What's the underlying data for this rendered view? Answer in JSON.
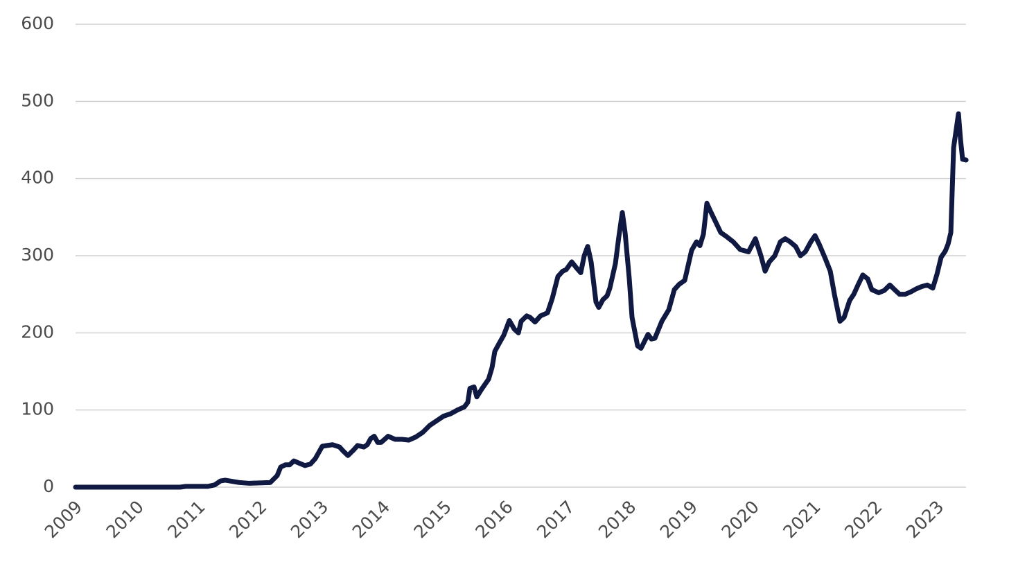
{
  "chart_data": {
    "type": "line",
    "x": [
      2009.0,
      2010.7,
      2010.79,
      2011.151,
      2011.264,
      2011.354,
      2011.432,
      2011.658,
      2011.827,
      2012.164,
      2012.277,
      2012.333,
      2012.412,
      2012.48,
      2012.547,
      2012.637,
      2012.727,
      2012.818,
      2012.896,
      2013.009,
      2013.088,
      2013.178,
      2013.291,
      2013.347,
      2013.426,
      2013.516,
      2013.583,
      2013.685,
      2013.741,
      2013.797,
      2013.854,
      2013.91,
      2013.966,
      2014.079,
      2014.135,
      2014.191,
      2014.304,
      2014.417,
      2014.529,
      2014.642,
      2014.755,
      2014.867,
      2014.98,
      2015.092,
      2015.205,
      2015.318,
      2015.374,
      2015.408,
      2015.475,
      2015.52,
      2015.599,
      2015.712,
      2015.768,
      2015.813,
      2015.881,
      2015.959,
      2016.049,
      2016.128,
      2016.196,
      2016.241,
      2016.331,
      2016.387,
      2016.466,
      2016.556,
      2016.669,
      2016.748,
      2016.838,
      2016.917,
      2016.973,
      2017.063,
      2017.142,
      2017.209,
      2017.266,
      2017.322,
      2017.378,
      2017.457,
      2017.502,
      2017.57,
      2017.637,
      2017.682,
      2017.773,
      2017.829,
      2017.885,
      2017.93,
      2017.998,
      2018.043,
      2018.133,
      2018.189,
      2018.302,
      2018.358,
      2018.414,
      2018.527,
      2018.64,
      2018.73,
      2018.809,
      2018.899,
      2019.011,
      2019.09,
      2019.146,
      2019.203,
      2019.259,
      2019.315,
      2019.394,
      2019.484,
      2019.574,
      2019.687,
      2019.8,
      2019.935,
      2020.047,
      2020.137,
      2020.205,
      2020.273,
      2020.363,
      2020.453,
      2020.532,
      2020.611,
      2020.701,
      2020.779,
      2020.858,
      2020.948,
      2021.016,
      2021.083,
      2021.174,
      2021.264,
      2021.331,
      2021.421,
      2021.489,
      2021.579,
      2021.646,
      2021.714,
      2021.793,
      2021.872,
      2021.939,
      2022.052,
      2022.142,
      2022.232,
      2022.322,
      2022.39,
      2022.48,
      2022.57,
      2022.66,
      2022.75,
      2022.84,
      2022.93,
      2022.998,
      2023.065,
      2023.133,
      2023.178,
      2023.223,
      2023.268,
      2023.347,
      2023.381,
      2023.414,
      2023.471
    ],
    "series": [
      {
        "color": "#0f1941",
        "values": [
          0,
          0,
          1,
          1,
          3,
          8,
          9,
          6,
          5,
          6,
          15,
          26,
          29,
          29,
          34,
          31,
          28,
          30,
          37,
          53,
          54,
          55,
          52,
          47,
          41,
          48,
          54,
          52,
          55,
          63,
          66,
          58,
          58,
          66,
          64,
          62,
          62,
          61,
          65,
          71,
          80,
          86,
          92,
          95,
          100,
          104,
          110,
          128,
          130,
          117,
          127,
          140,
          155,
          176,
          186,
          197,
          216,
          205,
          200,
          215,
          222,
          220,
          214,
          222,
          226,
          245,
          273,
          280,
          282,
          292,
          284,
          278,
          300,
          312,
          292,
          240,
          233,
          243,
          248,
          258,
          290,
          325,
          356,
          330,
          270,
          220,
          183,
          180,
          198,
          192,
          193,
          215,
          230,
          256,
          263,
          268,
          307,
          318,
          313,
          328,
          368,
          358,
          345,
          330,
          325,
          318,
          308,
          305,
          322,
          300,
          280,
          292,
          300,
          318,
          322,
          318,
          312,
          300,
          305,
          318,
          326,
          315,
          298,
          280,
          250,
          215,
          220,
          242,
          250,
          262,
          275,
          270,
          256,
          252,
          255,
          262,
          255,
          250,
          250,
          253,
          257,
          260,
          262,
          258,
          276,
          298,
          306,
          315,
          330,
          440,
          484,
          450,
          425,
          424
        ]
      }
    ],
    "xlim": [
      2009,
      2023.47
    ],
    "xticks": [
      2009,
      2010,
      2011,
      2012,
      2013,
      2014,
      2015,
      2016,
      2017,
      2018,
      2019,
      2020,
      2021,
      2022,
      2023
    ],
    "ylim": [
      0,
      600
    ],
    "yticks": [
      0,
      100,
      200,
      300,
      400,
      500,
      600
    ],
    "grid": true
  }
}
